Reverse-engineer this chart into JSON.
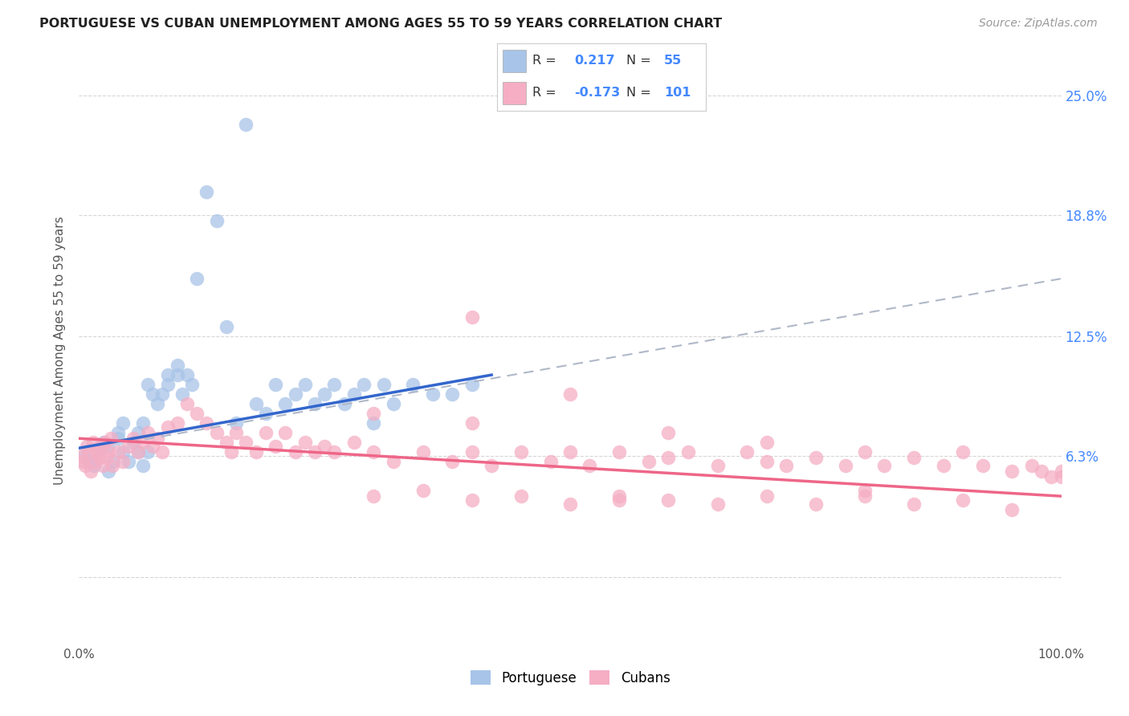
{
  "title": "PORTUGUESE VS CUBAN UNEMPLOYMENT AMONG AGES 55 TO 59 YEARS CORRELATION CHART",
  "source": "Source: ZipAtlas.com",
  "ylabel": "Unemployment Among Ages 55 to 59 years",
  "xlim": [
    0.0,
    1.0
  ],
  "ylim": [
    -0.035,
    0.27
  ],
  "y_ticks": [
    0.0,
    0.063,
    0.125,
    0.188,
    0.25
  ],
  "y_tick_labels": [
    "",
    "6.3%",
    "12.5%",
    "18.8%",
    "25.0%"
  ],
  "x_tick_labels": [
    "0.0%",
    "",
    "",
    "",
    "100.0%"
  ],
  "portuguese_R": 0.217,
  "portuguese_N": 55,
  "cuban_R": -0.173,
  "cuban_N": 101,
  "portuguese_color": "#a8c4e8",
  "cuban_color": "#f5aec4",
  "portuguese_line_color": "#3366cc",
  "cuban_line_color": "#ee6688",
  "dashed_line_color": "#b0b8c8",
  "background_color": "#ffffff",
  "port_x": [
    0.005,
    0.01,
    0.015,
    0.02,
    0.025,
    0.03,
    0.03,
    0.035,
    0.04,
    0.04,
    0.045,
    0.045,
    0.05,
    0.055,
    0.06,
    0.06,
    0.065,
    0.065,
    0.07,
    0.07,
    0.075,
    0.08,
    0.085,
    0.09,
    0.09,
    0.1,
    0.1,
    0.105,
    0.11,
    0.115,
    0.12,
    0.13,
    0.14,
    0.15,
    0.16,
    0.17,
    0.18,
    0.19,
    0.2,
    0.21,
    0.22,
    0.23,
    0.24,
    0.25,
    0.26,
    0.27,
    0.28,
    0.29,
    0.3,
    0.31,
    0.32,
    0.34,
    0.36,
    0.38,
    0.4
  ],
  "port_y": [
    0.063,
    0.06,
    0.058,
    0.065,
    0.07,
    0.055,
    0.068,
    0.06,
    0.072,
    0.075,
    0.065,
    0.08,
    0.06,
    0.07,
    0.065,
    0.075,
    0.058,
    0.08,
    0.065,
    0.1,
    0.095,
    0.09,
    0.095,
    0.1,
    0.105,
    0.105,
    0.11,
    0.095,
    0.105,
    0.1,
    0.155,
    0.2,
    0.185,
    0.13,
    0.08,
    0.235,
    0.09,
    0.085,
    0.1,
    0.09,
    0.095,
    0.1,
    0.09,
    0.095,
    0.1,
    0.09,
    0.095,
    0.1,
    0.08,
    0.1,
    0.09,
    0.1,
    0.095,
    0.095,
    0.1
  ],
  "cuban_x": [
    0.002,
    0.004,
    0.006,
    0.008,
    0.01,
    0.012,
    0.014,
    0.016,
    0.018,
    0.02,
    0.022,
    0.024,
    0.026,
    0.028,
    0.03,
    0.032,
    0.034,
    0.04,
    0.045,
    0.05,
    0.055,
    0.06,
    0.065,
    0.07,
    0.075,
    0.08,
    0.085,
    0.09,
    0.1,
    0.11,
    0.12,
    0.13,
    0.14,
    0.15,
    0.155,
    0.16,
    0.17,
    0.18,
    0.19,
    0.2,
    0.21,
    0.22,
    0.23,
    0.24,
    0.25,
    0.26,
    0.28,
    0.3,
    0.32,
    0.35,
    0.38,
    0.4,
    0.4,
    0.42,
    0.45,
    0.48,
    0.5,
    0.52,
    0.55,
    0.58,
    0.6,
    0.62,
    0.65,
    0.68,
    0.7,
    0.72,
    0.75,
    0.78,
    0.8,
    0.82,
    0.85,
    0.88,
    0.9,
    0.92,
    0.95,
    0.97,
    0.98,
    0.99,
    1.0,
    1.0,
    0.3,
    0.35,
    0.4,
    0.45,
    0.5,
    0.55,
    0.6,
    0.65,
    0.7,
    0.75,
    0.8,
    0.85,
    0.9,
    0.95,
    0.7,
    0.5,
    0.4,
    0.3,
    0.6,
    0.8,
    0.55
  ],
  "cuban_y": [
    0.063,
    0.06,
    0.058,
    0.068,
    0.065,
    0.055,
    0.07,
    0.06,
    0.065,
    0.062,
    0.068,
    0.058,
    0.07,
    0.062,
    0.065,
    0.072,
    0.058,
    0.065,
    0.06,
    0.068,
    0.072,
    0.065,
    0.07,
    0.075,
    0.068,
    0.072,
    0.065,
    0.078,
    0.08,
    0.09,
    0.085,
    0.08,
    0.075,
    0.07,
    0.065,
    0.075,
    0.07,
    0.065,
    0.075,
    0.068,
    0.075,
    0.065,
    0.07,
    0.065,
    0.068,
    0.065,
    0.07,
    0.065,
    0.06,
    0.065,
    0.06,
    0.135,
    0.065,
    0.058,
    0.065,
    0.06,
    0.065,
    0.058,
    0.065,
    0.06,
    0.062,
    0.065,
    0.058,
    0.065,
    0.06,
    0.058,
    0.062,
    0.058,
    0.065,
    0.058,
    0.062,
    0.058,
    0.065,
    0.058,
    0.055,
    0.058,
    0.055,
    0.052,
    0.055,
    0.052,
    0.042,
    0.045,
    0.04,
    0.042,
    0.038,
    0.042,
    0.04,
    0.038,
    0.042,
    0.038,
    0.042,
    0.038,
    0.04,
    0.035,
    0.07,
    0.095,
    0.08,
    0.085,
    0.075,
    0.045,
    0.04
  ],
  "port_line_x0": 0.0,
  "port_line_x1": 0.42,
  "port_line_y0": 0.067,
  "port_line_y1": 0.105,
  "dashed_line_x0": 0.05,
  "dashed_line_x1": 1.0,
  "dashed_line_y0": 0.07,
  "dashed_line_y1": 0.155,
  "cuban_line_x0": 0.0,
  "cuban_line_x1": 1.0,
  "cuban_line_y0": 0.072,
  "cuban_line_y1": 0.042
}
